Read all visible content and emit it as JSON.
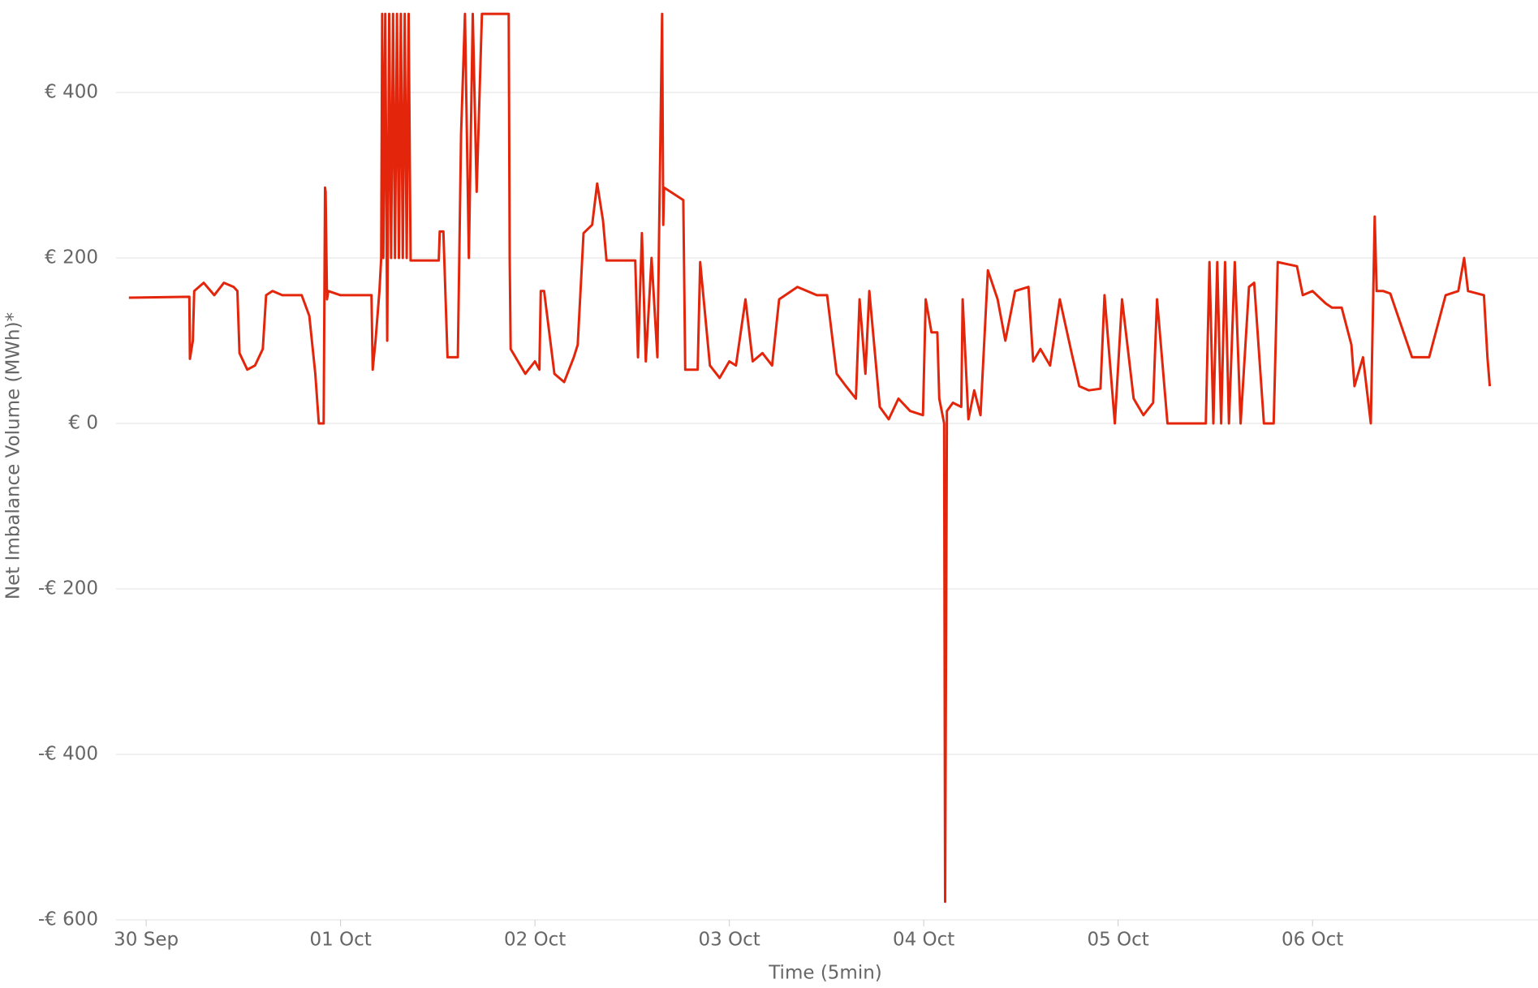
{
  "chart_data": {
    "type": "line",
    "y_label": "Net Imbalance Volume (MWh)*",
    "x_label": "Time (5min)",
    "xlim": [
      -0.155,
      7.16
    ],
    "ylim": [
      -600,
      500
    ],
    "xticks": [
      {
        "value": 0,
        "label": "30 Sep"
      },
      {
        "value": 1,
        "label": "01 Oct"
      },
      {
        "value": 2,
        "label": "02 Oct"
      },
      {
        "value": 3,
        "label": "03 Oct"
      },
      {
        "value": 4,
        "label": "04 Oct"
      },
      {
        "value": 5,
        "label": "05 Oct"
      },
      {
        "value": 6,
        "label": "06 Oct"
      }
    ],
    "yticks": [
      {
        "value": -600,
        "label": "-€ 600"
      },
      {
        "value": -400,
        "label": "-€ 400"
      },
      {
        "value": -200,
        "label": "-€ 200"
      },
      {
        "value": 0,
        "label": "€ 0"
      },
      {
        "value": 200,
        "label": "€ 200"
      },
      {
        "value": 400,
        "label": "€ 400"
      }
    ],
    "grid": true,
    "series": [
      {
        "color": "#e3260b",
        "x": [
          -0.089,
          0.222,
          0.225,
          0.24,
          0.247,
          0.296,
          0.35,
          0.4,
          0.45,
          0.469,
          0.48,
          0.52,
          0.56,
          0.6,
          0.617,
          0.65,
          0.7,
          0.8,
          0.839,
          0.87,
          0.888,
          0.913,
          0.92,
          0.923,
          0.93,
          0.937,
          1.0,
          1.159,
          1.165,
          1.18,
          1.2,
          1.209,
          1.214,
          1.22,
          1.23,
          1.24,
          1.25,
          1.26,
          1.27,
          1.28,
          1.29,
          1.3,
          1.31,
          1.32,
          1.33,
          1.34,
          1.35,
          1.36,
          1.381,
          1.505,
          1.51,
          1.529,
          1.55,
          1.603,
          1.62,
          1.64,
          1.66,
          1.68,
          1.7,
          1.727,
          1.865,
          1.87,
          1.875,
          1.9,
          1.95,
          2.0,
          2.023,
          2.03,
          2.047,
          2.1,
          2.15,
          2.2,
          2.22,
          2.25,
          2.294,
          2.32,
          2.35,
          2.368,
          2.516,
          2.53,
          2.55,
          2.57,
          2.6,
          2.63,
          2.654,
          2.66,
          2.664,
          2.763,
          2.773,
          2.837,
          2.85,
          2.9,
          2.95,
          3.0,
          3.034,
          3.083,
          3.12,
          3.17,
          3.22,
          3.256,
          3.35,
          3.45,
          3.503,
          3.552,
          3.6,
          3.651,
          3.67,
          3.7,
          3.72,
          3.774,
          3.82,
          3.87,
          3.93,
          3.996,
          4.01,
          4.04,
          4.07,
          4.08,
          4.105,
          4.11,
          4.119,
          4.15,
          4.193,
          4.2,
          4.23,
          4.26,
          4.292,
          4.33,
          4.38,
          4.42,
          4.47,
          4.539,
          4.563,
          4.6,
          4.65,
          4.7,
          4.761,
          4.8,
          4.85,
          4.909,
          4.93,
          4.983,
          5.02,
          5.08,
          5.13,
          5.18,
          5.2,
          5.254,
          5.451,
          5.47,
          5.49,
          5.51,
          5.53,
          5.55,
          5.57,
          5.6,
          5.63,
          5.673,
          5.7,
          5.75,
          5.8,
          5.821,
          5.92,
          5.95,
          6.0,
          6.068,
          6.1,
          6.15,
          6.2,
          6.216,
          6.26,
          6.3,
          6.32,
          6.33,
          6.364,
          6.4,
          6.512,
          6.6,
          6.685,
          6.75,
          6.78,
          6.8,
          6.882,
          6.9,
          6.912
        ],
        "values": [
          152,
          153,
          78,
          100,
          160,
          170,
          155,
          170,
          165,
          160,
          85,
          65,
          70,
          90,
          155,
          160,
          155,
          155,
          130,
          60,
          0,
          0,
          285,
          280,
          150,
          160,
          155,
          155,
          65,
          100,
          160,
          200,
          495,
          200,
          495,
          100,
          495,
          200,
          495,
          200,
          495,
          200,
          495,
          200,
          495,
          200,
          495,
          197,
          197,
          197,
          232,
          232,
          80,
          80,
          350,
          495,
          200,
          495,
          280,
          495,
          495,
          200,
          90,
          80,
          60,
          75,
          65,
          160,
          160,
          60,
          50,
          80,
          95,
          230,
          240,
          290,
          245,
          197,
          197,
          80,
          230,
          75,
          200,
          80,
          495,
          240,
          285,
          270,
          65,
          65,
          195,
          70,
          55,
          75,
          70,
          150,
          75,
          85,
          70,
          150,
          165,
          155,
          155,
          60,
          45,
          30,
          150,
          60,
          160,
          20,
          5,
          30,
          15,
          10,
          150,
          110,
          110,
          30,
          0,
          -578,
          15,
          25,
          20,
          150,
          5,
          40,
          10,
          185,
          150,
          100,
          160,
          165,
          75,
          90,
          70,
          150,
          85,
          45,
          40,
          42,
          155,
          0,
          150,
          30,
          10,
          25,
          150,
          0,
          0,
          195,
          0,
          195,
          0,
          195,
          0,
          195,
          0,
          165,
          170,
          0,
          0,
          195,
          190,
          155,
          160,
          145,
          140,
          140,
          95,
          45,
          80,
          0,
          250,
          160,
          160,
          157,
          80,
          80,
          155,
          160,
          200,
          160,
          155,
          80,
          45
        ]
      }
    ]
  }
}
